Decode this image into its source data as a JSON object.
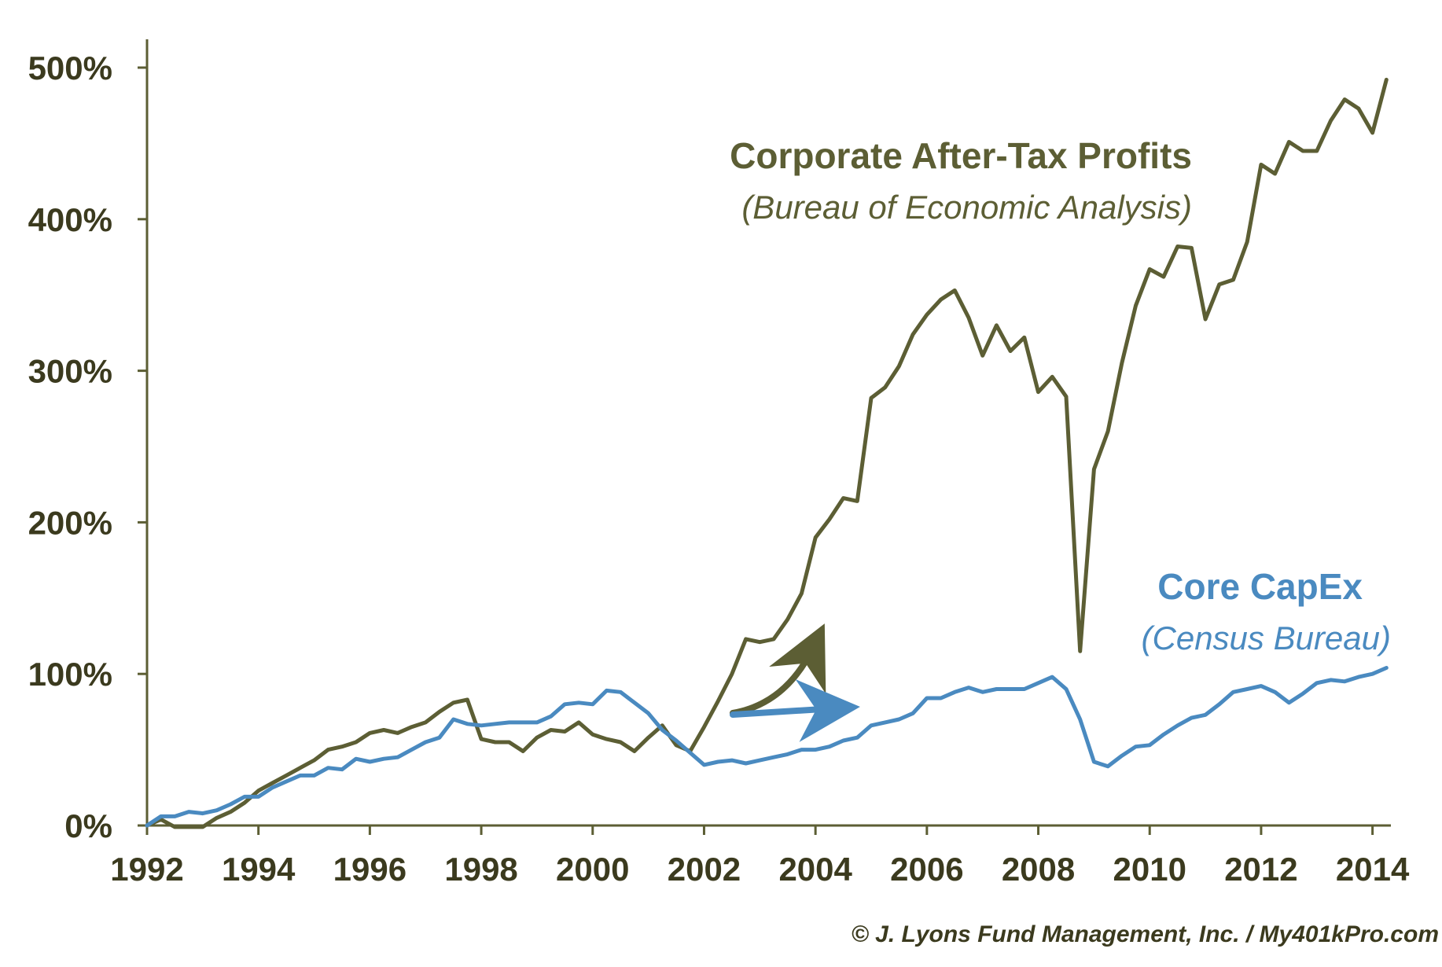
{
  "chart_data": {
    "type": "line",
    "title": "",
    "xlabel": "",
    "ylabel": "",
    "xlim": [
      1992,
      2014.33
    ],
    "ylim": [
      0,
      500
    ],
    "grid": false,
    "x_ticks": [
      1992,
      1994,
      1996,
      1998,
      2000,
      2002,
      2004,
      2006,
      2008,
      2010,
      2012,
      2014
    ],
    "x_tick_labels": [
      "1992",
      "1994",
      "1996",
      "1998",
      "2000",
      "2002",
      "2004",
      "2006",
      "2008",
      "2010",
      "2012",
      "2014"
    ],
    "y_ticks": [
      0,
      100,
      200,
      300,
      400,
      500
    ],
    "y_tick_labels": [
      "0%",
      "100%",
      "200%",
      "300%",
      "400%",
      "500%"
    ],
    "series": [
      {
        "name": "Corporate After-Tax Profits",
        "source": "(Bureau of Economic Analysis)",
        "color": "#5C5E34",
        "x": [
          1992,
          1992.25,
          1992.5,
          1992.75,
          1993,
          1993.25,
          1993.5,
          1993.75,
          1994,
          1994.25,
          1994.5,
          1994.75,
          1995,
          1995.25,
          1995.5,
          1995.75,
          1996,
          1996.25,
          1996.5,
          1996.75,
          1997,
          1997.25,
          1997.5,
          1997.75,
          1998,
          1998.25,
          1998.5,
          1998.75,
          1999,
          1999.25,
          1999.5,
          1999.75,
          2000,
          2000.25,
          2000.5,
          2000.75,
          2001,
          2001.25,
          2001.5,
          2001.75,
          2002,
          2002.25,
          2002.5,
          2002.75,
          2003,
          2003.25,
          2003.5,
          2003.75,
          2004,
          2004.25,
          2004.5,
          2004.75,
          2005,
          2005.25,
          2005.5,
          2005.75,
          2006,
          2006.25,
          2006.5,
          2006.75,
          2007,
          2007.25,
          2007.5,
          2007.75,
          2008,
          2008.25,
          2008.5,
          2008.75,
          2009,
          2009.25,
          2009.5,
          2009.75,
          2010,
          2010.25,
          2010.5,
          2010.75,
          2011,
          2011.25,
          2011.5,
          2011.75,
          2012,
          2012.25,
          2012.5,
          2012.75,
          2013,
          2013.25,
          2013.5,
          2013.75,
          2014,
          2014.25
        ],
        "values": [
          0,
          4,
          -1,
          -1,
          -1,
          5,
          9,
          15,
          23,
          28,
          33,
          38,
          43,
          50,
          52,
          55,
          61,
          63,
          61,
          65,
          68,
          75,
          81,
          83,
          57,
          55,
          55,
          49,
          58,
          63,
          62,
          68,
          60,
          57,
          55,
          49,
          58,
          66,
          53,
          49,
          65,
          82,
          100,
          123,
          121,
          123,
          136,
          153,
          190,
          202,
          216,
          214,
          282,
          289,
          303,
          324,
          337,
          347,
          353,
          335,
          310,
          330,
          313,
          322,
          286,
          296,
          283,
          115,
          235,
          260,
          305,
          343,
          367,
          362,
          382,
          381,
          334,
          357,
          360,
          385,
          436,
          430,
          451,
          445,
          445,
          465,
          479,
          473,
          457,
          492
        ]
      },
      {
        "name": "Core CapEx",
        "source": "(Census Bureau)",
        "color": "#4A8AC0",
        "x": [
          1992,
          1992.25,
          1992.5,
          1992.75,
          1993,
          1993.25,
          1993.5,
          1993.75,
          1994,
          1994.25,
          1994.5,
          1994.75,
          1995,
          1995.25,
          1995.5,
          1995.75,
          1996,
          1996.25,
          1996.5,
          1996.75,
          1997,
          1997.25,
          1997.5,
          1997.75,
          1998,
          1998.25,
          1998.5,
          1998.75,
          1999,
          1999.25,
          1999.5,
          1999.75,
          2000,
          2000.25,
          2000.5,
          2000.75,
          2001,
          2001.25,
          2001.5,
          2001.75,
          2002,
          2002.25,
          2002.5,
          2002.75,
          2003,
          2003.25,
          2003.5,
          2003.75,
          2004,
          2004.25,
          2004.5,
          2004.75,
          2005,
          2005.25,
          2005.5,
          2005.75,
          2006,
          2006.25,
          2006.5,
          2006.75,
          2007,
          2007.25,
          2007.5,
          2007.75,
          2008,
          2008.25,
          2008.5,
          2008.75,
          2009,
          2009.25,
          2009.5,
          2009.75,
          2010,
          2010.25,
          2010.5,
          2010.75,
          2011,
          2011.25,
          2011.5,
          2011.75,
          2012,
          2012.25,
          2012.5,
          2012.75,
          2013,
          2013.25,
          2013.5,
          2013.75,
          2014,
          2014.25
        ],
        "values": [
          0,
          6,
          6,
          9,
          8,
          10,
          14,
          19,
          19,
          25,
          29,
          33,
          33,
          38,
          37,
          44,
          42,
          44,
          45,
          50,
          55,
          58,
          70,
          67,
          66,
          67,
          68,
          68,
          68,
          72,
          80,
          81,
          80,
          89,
          88,
          81,
          74,
          63,
          56,
          48,
          40,
          42,
          43,
          41,
          43,
          45,
          47,
          50,
          50,
          52,
          56,
          58,
          66,
          68,
          70,
          74,
          84,
          84,
          88,
          91,
          88,
          90,
          90,
          90,
          94,
          98,
          90,
          70,
          42,
          39,
          46,
          52,
          53,
          60,
          66,
          71,
          73,
          80,
          88,
          90,
          92,
          88,
          81,
          87,
          94,
          96,
          95,
          98,
          100,
          104
        ]
      }
    ],
    "annotations": [
      {
        "type": "arrow",
        "series": "Corporate After-Tax Profits",
        "direction": "curving up"
      },
      {
        "type": "arrow",
        "series": "Core CapEx",
        "direction": "flat right"
      }
    ]
  },
  "labels": {
    "profits_title": "Corporate After-Tax Profits",
    "profits_subtitle": "(Bureau of Economic Analysis)",
    "capex_title": "Core CapEx",
    "capex_subtitle": "(Census Bureau)",
    "credit": "© J. Lyons Fund Management, Inc. / My401kPro.com"
  },
  "colors": {
    "axis": "#5C5E34",
    "tick_text": "#3B3A1E",
    "profits": "#5C5E34",
    "capex": "#4A8AC0"
  }
}
